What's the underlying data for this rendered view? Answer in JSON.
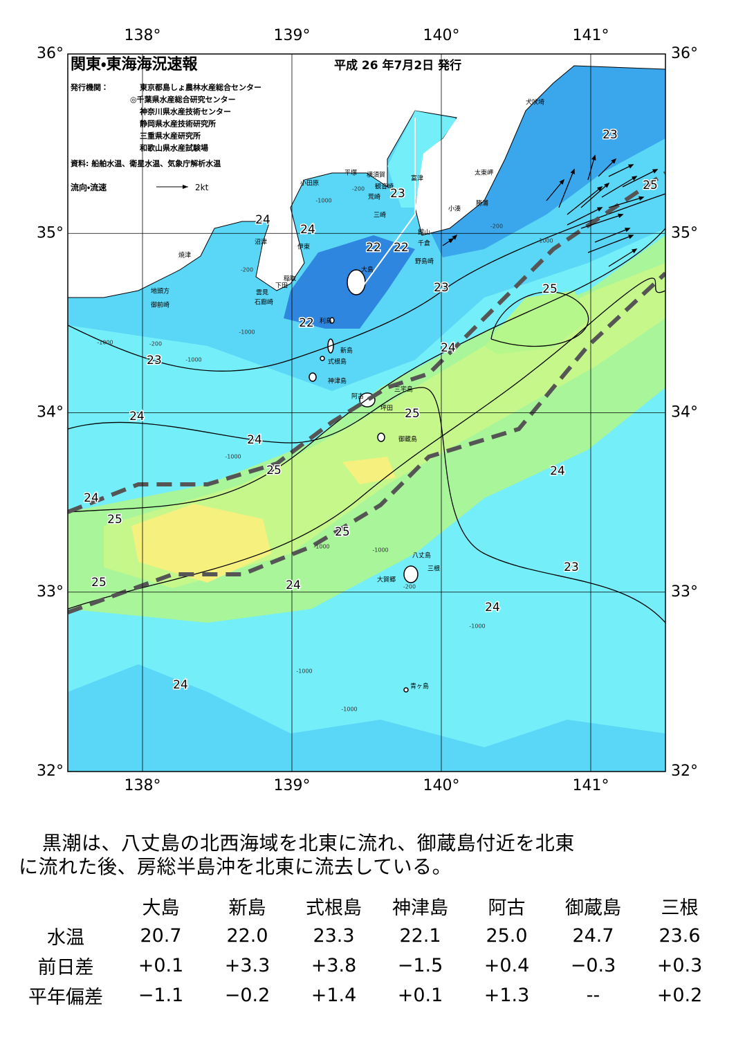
{
  "header": {
    "title": "関東・東海海況速報",
    "date": "平成 26 年7月2日 発行",
    "issuer_label": "発行機関：",
    "issuers": [
      "東京都島しょ農林水産総合センター",
      "◎千葉県水産総合研究センター",
      "神奈川県水産技術センター",
      "静岡県水産技術研究所",
      "三重県水産研究所",
      "和歌山県水産試験場"
    ],
    "source": "資料: 船舶水温、衛星水温、気象庁解析水温",
    "legend_label": "流向・流速",
    "legend_speed": "2kt"
  },
  "map": {
    "lon_ticks": [
      {
        "value": 138,
        "label": "138°"
      },
      {
        "value": 139,
        "label": "139°"
      },
      {
        "value": 140,
        "label": "140°"
      },
      {
        "value": 141,
        "label": "141°"
      }
    ],
    "lat_ticks": [
      {
        "value": 36,
        "label": "36°"
      },
      {
        "value": 35,
        "label": "35°"
      },
      {
        "value": 34,
        "label": "34°"
      },
      {
        "value": 33,
        "label": "33°"
      },
      {
        "value": 32,
        "label": "32°"
      }
    ],
    "places": [
      "犬吠埼",
      "太東岬",
      "勝浦",
      "小湊",
      "富津",
      "館山",
      "千倉",
      "野島崎",
      "横須賀",
      "観音崎",
      "荒崎",
      "三崎",
      "平塚",
      "小田原",
      "沼津",
      "伊東",
      "稲取",
      "下田",
      "雲見",
      "石廊崎",
      "焼津",
      "地頭方",
      "御前崎",
      "大島",
      "利島",
      "新島",
      "式根島",
      "神津島",
      "阿古",
      "三宅島",
      "坪田",
      "御蔵島",
      "八丈島",
      "三根",
      "大賀郷",
      "青ヶ島"
    ],
    "isotherm_labels": [
      23,
      25,
      23,
      24,
      24,
      22,
      22,
      23,
      25,
      22,
      24,
      23,
      24,
      24,
      25,
      25,
      24,
      24,
      25,
      25,
      23,
      25,
      24,
      24,
      24
    ],
    "depth_labels": [
      "-200",
      "-1000",
      "-200",
      "-1000",
      "-200",
      "-1000",
      "-200",
      "-1000",
      "-1000",
      "-1000",
      "-1000",
      "-1000",
      "-1000",
      "-1000",
      "-1000",
      "-200"
    ]
  },
  "summary": {
    "lines": [
      "黒潮は、八丈島の北西海域を北東に流れ、御蔵島付近を北東",
      "に流れた後、房総半島沖を北東に流去している。"
    ]
  },
  "table": {
    "columns": [
      "大島",
      "新島",
      "式根島",
      "神津島",
      "阿古",
      "御蔵島",
      "三根"
    ],
    "rows": [
      {
        "label": "水温",
        "values": [
          "20.7",
          "22.0",
          "23.3",
          "22.1",
          "25.0",
          "24.7",
          "23.6"
        ]
      },
      {
        "label": "前日差",
        "values": [
          "+0.1",
          "+3.3",
          "+3.8",
          "−1.5",
          "+0.4",
          "−0.3",
          "+0.3"
        ]
      },
      {
        "label": "平年偏差",
        "values": [
          "−1.1",
          "−0.2",
          "+1.4",
          "+0.1",
          "+1.3",
          "--",
          "+0.2"
        ]
      }
    ]
  }
}
